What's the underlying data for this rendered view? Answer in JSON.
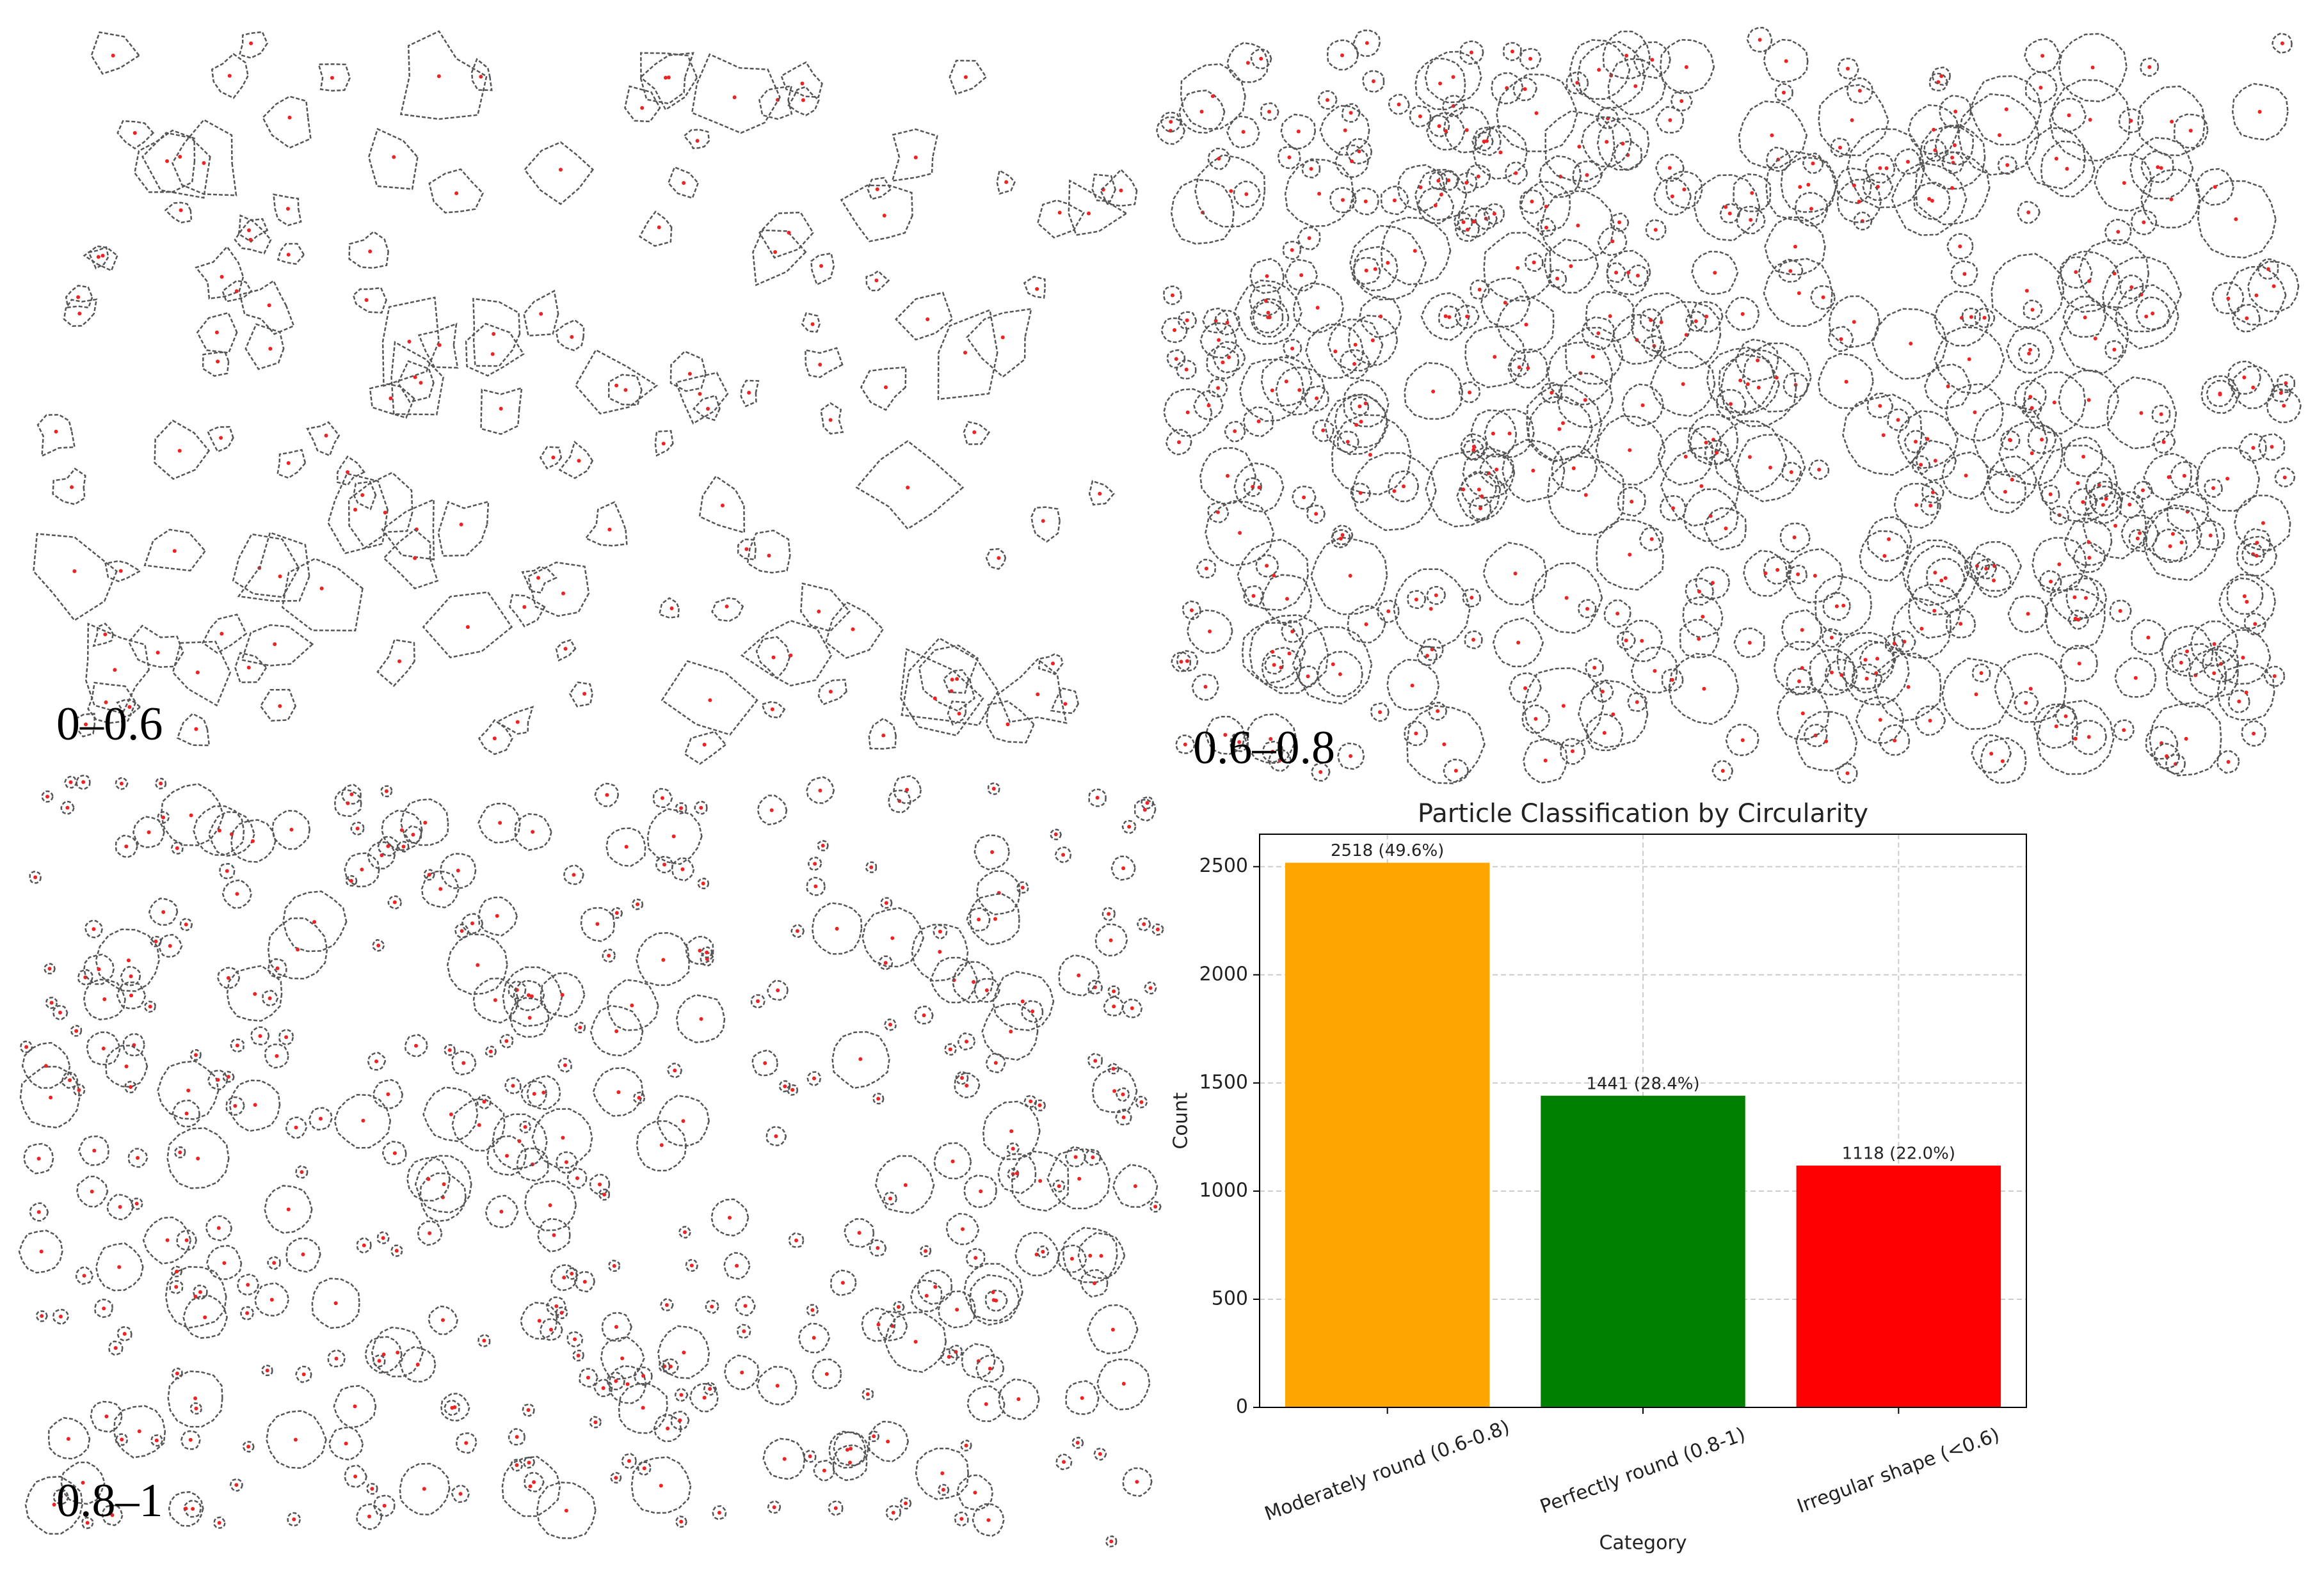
{
  "panels": [
    {
      "label": "0–0.6"
    },
    {
      "label": "0.6–0.8"
    },
    {
      "label": "0.8–1"
    }
  ],
  "chart_data": {
    "type": "bar",
    "title": "Particle Classification by Circularity",
    "xlabel": "Category",
    "ylabel": "Count",
    "categories": [
      "Moderately round (0.6-0.8)",
      "Perfectly round (0.8-1)",
      "Irregular shape (<0.6)"
    ],
    "values": [
      2518,
      1441,
      1118
    ],
    "value_labels": [
      "2518 (49.6%)",
      "1441 (28.4%)",
      "1118 (22.0%)"
    ],
    "colors": [
      "#ffa500",
      "#008000",
      "#ff0000"
    ],
    "ylim": [
      0,
      2650
    ],
    "yticks": [
      0,
      500,
      1000,
      1500,
      2000,
      2500
    ],
    "grid": true
  }
}
